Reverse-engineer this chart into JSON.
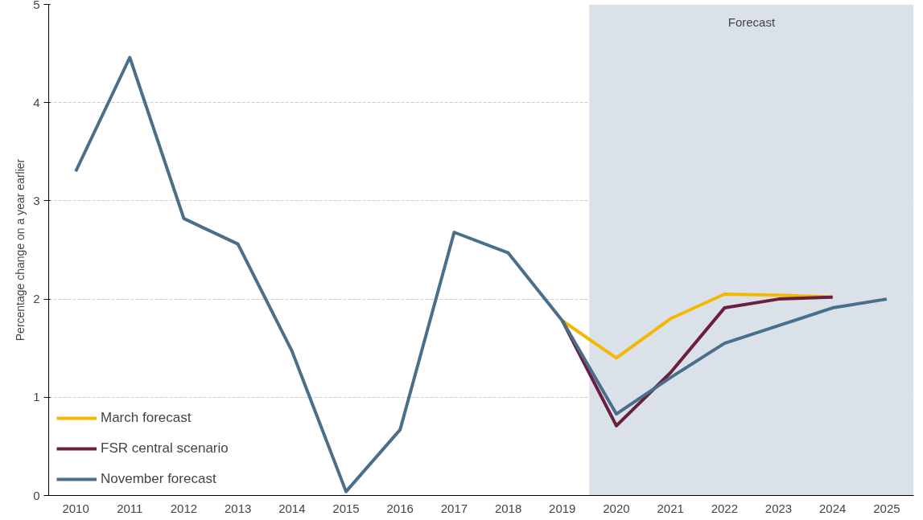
{
  "chart_data": {
    "type": "line",
    "ylabel": "Percentage change on a year earlier",
    "categories": [
      "2010",
      "2011",
      "2012",
      "2013",
      "2014",
      "2015",
      "2016",
      "2017",
      "2018",
      "2019",
      "2020",
      "2021",
      "2022",
      "2023",
      "2024",
      "2025"
    ],
    "series": [
      {
        "name": "March forecast",
        "color": "#f5b800",
        "values": [
          null,
          null,
          null,
          null,
          null,
          null,
          null,
          null,
          null,
          1.78,
          1.4,
          1.8,
          2.05,
          2.04,
          2.02,
          null
        ]
      },
      {
        "name": "FSR central scenario",
        "color": "#6b1f3f",
        "values": [
          null,
          null,
          null,
          null,
          null,
          null,
          null,
          null,
          null,
          1.78,
          0.71,
          1.25,
          1.91,
          2.0,
          2.02,
          null
        ]
      },
      {
        "name": "November forecast",
        "color": "#4a6f8a",
        "values": [
          3.3,
          4.46,
          2.82,
          2.56,
          1.47,
          0.04,
          0.67,
          2.68,
          2.47,
          1.78,
          0.83,
          1.2,
          1.55,
          1.73,
          1.91,
          2.0
        ]
      }
    ],
    "ylim": [
      0,
      5
    ],
    "yticks": [
      0,
      1,
      2,
      3,
      4,
      5
    ],
    "grid": "y",
    "legend": "bottom left",
    "line_style": "solid",
    "bands": [
      {
        "axis": "x",
        "from": "2020",
        "to": "2025",
        "label": "Forecast",
        "color": "#dae1e8"
      }
    ]
  }
}
